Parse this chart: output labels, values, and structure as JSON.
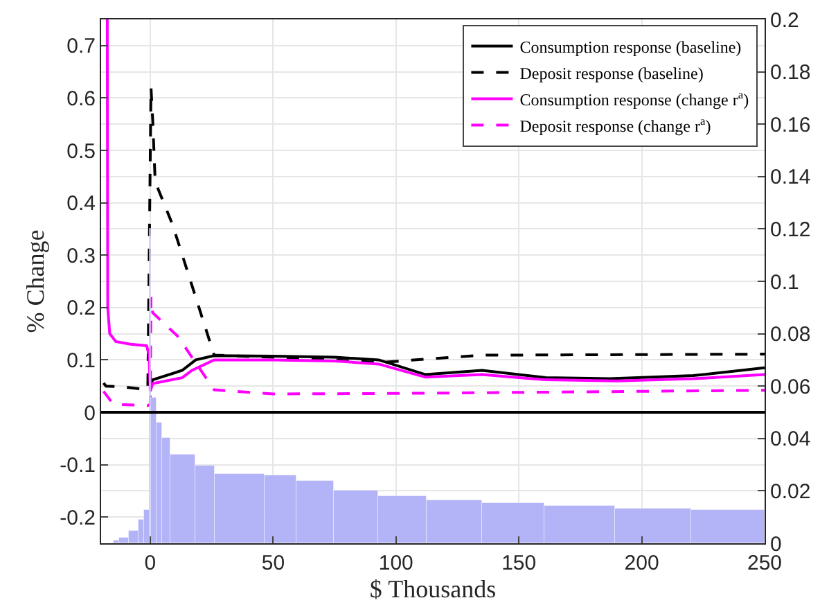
{
  "chart_data": {
    "type": "line",
    "xlabel": "$ Thousands",
    "ylabel": "% Change",
    "xlim": [
      -20,
      250
    ],
    "xticks": [
      0,
      50,
      100,
      150,
      200,
      250
    ],
    "ylim": [
      -0.25,
      0.75
    ],
    "yticks": [
      -0.2,
      -0.1,
      0,
      0.1,
      0.2,
      0.3,
      0.4,
      0.5,
      0.6,
      0.7
    ],
    "y2lim": [
      0,
      0.2
    ],
    "y2ticks": [
      0,
      0.02,
      0.04,
      0.06,
      0.08,
      0.1,
      0.12,
      0.14,
      0.16,
      0.18,
      0.2
    ],
    "grid": true,
    "legend": "top right",
    "marker": "none",
    "ref_lines": [
      {
        "axis": "y",
        "value": 0,
        "color": "#000000"
      }
    ],
    "series": [
      {
        "type": "histogram",
        "axis": "y2",
        "color": "#b3b3f8",
        "bins": [
          -15.2,
          -12.4,
          -8.6,
          -4.9,
          -2.4,
          -0.2,
          0.5,
          2.6,
          4.9,
          8.2,
          18.5,
          26,
          46.6,
          59.7,
          74.7,
          92.5,
          112.2,
          135,
          160.5,
          189,
          220.4,
          250
        ],
        "values": [
          0.001,
          0.002,
          0.005,
          0.009,
          0.0126,
          0.12,
          0.0556,
          0.046,
          0.04,
          0.034,
          0.0296,
          0.0265,
          0.026,
          0.024,
          0.02,
          0.018,
          0.0166,
          0.0153,
          0.0143,
          0.0132,
          0.0127
        ]
      },
      {
        "name": "Consumption response (baseline)",
        "color": "#000000",
        "line_style": "solid",
        "x": [
          0,
          1,
          13,
          18.5,
          26,
          50,
          75,
          93,
          112,
          135,
          161,
          187,
          221,
          250
        ],
        "values": [
          0.05,
          0.062,
          0.08,
          0.1,
          0.108,
          0.107,
          0.105,
          0.1,
          0.072,
          0.08,
          0.066,
          0.064,
          0.07,
          0.085
        ]
      },
      {
        "name": "Deposit response (baseline)",
        "color": "#000000",
        "line_style": "dashed",
        "x": [
          -19,
          -18,
          -10,
          -1,
          0.3,
          1,
          2,
          8.4,
          11,
          26,
          50,
          75,
          93,
          135,
          250
        ],
        "values": [
          0.056,
          0.05,
          0.048,
          0.043,
          0.62,
          0.557,
          0.44,
          0.366,
          0.33,
          0.109,
          0.105,
          0.1,
          0.095,
          0.109,
          0.111
        ]
      },
      {
        "name": "Consumption response (change r$^{a}$)",
        "color": "#ff00ff",
        "line_style": "solid",
        "x": [
          -17.5,
          -17.3,
          -16.5,
          -14,
          -8,
          -1.5,
          -0.5,
          0,
          1,
          13,
          17,
          26,
          50,
          75,
          93,
          112,
          135,
          161,
          190,
          221,
          250
        ],
        "values": [
          0.75,
          0.2,
          0.15,
          0.135,
          0.13,
          0.127,
          0.11,
          0.04,
          0.055,
          0.066,
          0.08,
          0.1,
          0.1,
          0.098,
          0.092,
          0.067,
          0.072,
          0.062,
          0.06,
          0.064,
          0.072
        ]
      },
      {
        "name": "Deposit response (change r$^{a}$)",
        "color": "#ff00ff",
        "line_style": "dashed",
        "x": [
          -19,
          -15,
          -1,
          0,
          0.3,
          1,
          11,
          26,
          50,
          100,
          150,
          200,
          250
        ],
        "values": [
          0.04,
          0.015,
          0.013,
          0.015,
          0.22,
          0.19,
          0.146,
          0.043,
          0.035,
          0.036,
          0.038,
          0.04,
          0.042
        ]
      }
    ]
  }
}
